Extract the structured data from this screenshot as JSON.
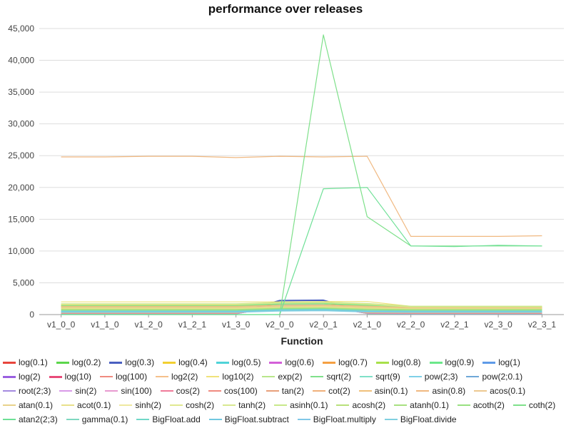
{
  "chart_data": {
    "type": "line",
    "title": "performance over releases",
    "xlabel": "Function",
    "ylabel": "",
    "ylim": [
      0,
      45000
    ],
    "yticks": [
      "0",
      "5,000",
      "10,000",
      "15,000",
      "20,000",
      "25,000",
      "30,000",
      "35,000",
      "40,000",
      "45,000"
    ],
    "grid": true,
    "legend_position": "bottom",
    "categories": [
      "v1_0_0",
      "v1_1_0",
      "v1_2_0",
      "v1_2_1",
      "v1_3_0",
      "v2_0_0",
      "v2_0_1",
      "v2_1_0",
      "v2_2_0",
      "v2_2_1",
      "v2_3_0",
      "v2_3_1"
    ],
    "series": [
      {
        "name": "log(0.1)",
        "color": "#e8453c",
        "values": [
          1250,
          1250,
          1250,
          1250,
          1250,
          1600,
          1650,
          1300,
          1000,
          1000,
          1000,
          1000
        ]
      },
      {
        "name": "log(0.2)",
        "color": "#5bd64b",
        "values": [
          1400,
          1400,
          1400,
          1400,
          1400,
          1800,
          1850,
          1500,
          1100,
          1100,
          1100,
          1100
        ]
      },
      {
        "name": "log(0.3)",
        "color": "#4a5fc1",
        "values": [
          300,
          300,
          300,
          300,
          300,
          2200,
          2250,
          300,
          300,
          300,
          300,
          300
        ]
      },
      {
        "name": "log(0.4)",
        "color": "#f2d031",
        "values": [
          1500,
          1500,
          1500,
          1500,
          1500,
          1900,
          1950,
          1600,
          1200,
          1200,
          1200,
          1200
        ]
      },
      {
        "name": "log(0.5)",
        "color": "#4fd3d8",
        "values": [
          200,
          200,
          200,
          200,
          200,
          1700,
          1750,
          250,
          200,
          200,
          200,
          200
        ]
      },
      {
        "name": "log(0.6)",
        "color": "#d35fd8",
        "values": [
          250,
          250,
          250,
          250,
          250,
          1500,
          1550,
          300,
          250,
          250,
          250,
          250
        ]
      },
      {
        "name": "log(0.7)",
        "color": "#f5a042",
        "values": [
          1000,
          1000,
          1000,
          1000,
          1000,
          1200,
          1250,
          1100,
          900,
          900,
          900,
          900
        ]
      },
      {
        "name": "log(0.8)",
        "color": "#a8e04a",
        "values": [
          1450,
          1450,
          1450,
          1450,
          1450,
          1850,
          1900,
          1550,
          1150,
          1150,
          1150,
          1150
        ]
      },
      {
        "name": "log(0.9)",
        "color": "#6be88a",
        "values": [
          1350,
          1350,
          1350,
          1350,
          1350,
          1750,
          1800,
          1450,
          1050,
          1050,
          1050,
          1050
        ]
      },
      {
        "name": "log(1)",
        "color": "#5e9be8",
        "values": [
          150,
          150,
          150,
          150,
          150,
          1400,
          1450,
          200,
          150,
          150,
          150,
          150
        ]
      },
      {
        "name": "log(2)",
        "color": "#9a5fe0",
        "values": [
          180,
          180,
          180,
          180,
          180,
          1300,
          1350,
          220,
          180,
          180,
          180,
          180
        ]
      },
      {
        "name": "log(10)",
        "color": "#e84b7a",
        "values": [
          220,
          220,
          220,
          220,
          220,
          1250,
          1300,
          260,
          220,
          220,
          220,
          220
        ]
      },
      {
        "name": "log(100)",
        "color": "#f08a80",
        "values": [
          1100,
          1100,
          1100,
          1100,
          1100,
          1400,
          1450,
          1150,
          950,
          950,
          950,
          950
        ]
      },
      {
        "name": "log2(2)",
        "color": "#f5c08a",
        "values": [
          900,
          900,
          900,
          900,
          900,
          1100,
          1150,
          950,
          800,
          800,
          800,
          800
        ]
      },
      {
        "name": "log10(2)",
        "color": "#f0e27a",
        "values": [
          2000,
          2000,
          2000,
          2000,
          2000,
          2000,
          2050,
          2050,
          1300,
          1300,
          1300,
          1300
        ]
      },
      {
        "name": "exp(2)",
        "color": "#b8e68a",
        "values": [
          1200,
          1200,
          1200,
          1200,
          1200,
          1550,
          1600,
          1250,
          1000,
          1000,
          1000,
          1000
        ]
      },
      {
        "name": "sqrt(2)",
        "color": "#7fe08a",
        "values": [
          100,
          100,
          100,
          100,
          100,
          1650,
          1700,
          150,
          100,
          100,
          100,
          100
        ]
      },
      {
        "name": "sqrt(9)",
        "color": "#7fe0c8",
        "values": [
          120,
          120,
          120,
          120,
          120,
          1550,
          1600,
          170,
          120,
          120,
          120,
          120
        ]
      },
      {
        "name": "pow(2;3)",
        "color": "#7fd0e8",
        "values": [
          130,
          130,
          130,
          130,
          130,
          1450,
          1500,
          180,
          130,
          130,
          130,
          130
        ]
      },
      {
        "name": "pow(2;0.1)",
        "color": "#6fa8d8",
        "values": [
          140,
          140,
          140,
          140,
          140,
          1350,
          1400,
          190,
          140,
          140,
          140,
          140
        ]
      },
      {
        "name": "root(2;3)",
        "color": "#a48ae0",
        "values": [
          160,
          160,
          160,
          160,
          160,
          1200,
          1250,
          210,
          160,
          160,
          160,
          160
        ]
      },
      {
        "name": "sin(2)",
        "color": "#d89ae8",
        "values": [
          170,
          170,
          170,
          170,
          170,
          1150,
          1200,
          220,
          170,
          170,
          170,
          170
        ]
      },
      {
        "name": "sin(100)",
        "color": "#e89ad0",
        "values": [
          190,
          190,
          190,
          190,
          190,
          1100,
          1150,
          240,
          190,
          190,
          190,
          190
        ]
      },
      {
        "name": "cos(2)",
        "color": "#f07a9a",
        "values": [
          210,
          210,
          210,
          210,
          210,
          1050,
          1100,
          260,
          210,
          210,
          210,
          210
        ]
      },
      {
        "name": "cos(100)",
        "color": "#f08a80",
        "values": [
          230,
          230,
          230,
          230,
          230,
          1000,
          1050,
          280,
          230,
          230,
          230,
          230
        ]
      },
      {
        "name": "tan(2)",
        "color": "#e8a07a",
        "values": [
          260,
          260,
          260,
          260,
          260,
          950,
          1000,
          300,
          260,
          260,
          260,
          260
        ]
      },
      {
        "name": "cot(2)",
        "color": "#f0b07a",
        "values": [
          280,
          280,
          280,
          280,
          280,
          900,
          950,
          320,
          280,
          280,
          280,
          280
        ]
      },
      {
        "name": "asin(0.1)",
        "color": "#f0c07a",
        "values": [
          1300,
          1300,
          1300,
          1300,
          1300,
          1500,
          1550,
          1350,
          1100,
          1100,
          1100,
          1100
        ]
      },
      {
        "name": "asin(0.8)",
        "color": "#f0b880",
        "values": [
          24800,
          24800,
          24900,
          24900,
          24700,
          24900,
          24800,
          24900,
          12300,
          12300,
          12300,
          12400
        ]
      },
      {
        "name": "acos(0.1)",
        "color": "#ecc890",
        "values": [
          1150,
          1150,
          1150,
          1150,
          1150,
          1350,
          1400,
          1200,
          1000,
          1000,
          1000,
          1000
        ]
      },
      {
        "name": "atan(0.1)",
        "color": "#e8d28a",
        "values": [
          1050,
          1050,
          1050,
          1050,
          1050,
          1250,
          1300,
          1100,
          950,
          950,
          950,
          950
        ]
      },
      {
        "name": "acot(0.1)",
        "color": "#e8e08a",
        "values": [
          950,
          950,
          950,
          950,
          950,
          1150,
          1200,
          1000,
          900,
          900,
          900,
          900
        ]
      },
      {
        "name": "sinh(2)",
        "color": "#eee8a0",
        "values": [
          1600,
          1600,
          1600,
          1600,
          1600,
          1850,
          1900,
          1650,
          1250,
          1250,
          1250,
          1250
        ]
      },
      {
        "name": "cosh(2)",
        "color": "#e0e890",
        "values": [
          1550,
          1550,
          1550,
          1550,
          1550,
          1800,
          1850,
          1600,
          1200,
          1200,
          1200,
          1200
        ]
      },
      {
        "name": "tanh(2)",
        "color": "#d8e890",
        "values": [
          850,
          850,
          850,
          850,
          850,
          1050,
          1100,
          900,
          850,
          850,
          850,
          850
        ]
      },
      {
        "name": "asinh(0.1)",
        "color": "#c8e88a",
        "values": [
          1700,
          1700,
          1700,
          1700,
          1700,
          1900,
          1950,
          1750,
          1300,
          1300,
          1300,
          1300
        ]
      },
      {
        "name": "acosh(2)",
        "color": "#b8e07a",
        "values": [
          800,
          800,
          800,
          800,
          800,
          1000,
          1050,
          850,
          800,
          800,
          800,
          800
        ]
      },
      {
        "name": "atanh(0.1)",
        "color": "#a8e080",
        "values": [
          750,
          750,
          750,
          750,
          750,
          950,
          1000,
          800,
          750,
          750,
          750,
          750
        ]
      },
      {
        "name": "acoth(2)",
        "color": "#98e080",
        "values": [
          700,
          700,
          700,
          700,
          700,
          900,
          950,
          750,
          700,
          700,
          700,
          700
        ]
      },
      {
        "name": "coth(2)",
        "color": "#7ee08a",
        "values": [
          0,
          0,
          0,
          0,
          0,
          0,
          44000,
          15400,
          10800,
          10800,
          10800,
          10800
        ]
      },
      {
        "name": "atan2(2;3)",
        "color": "#6ee096",
        "values": [
          0,
          0,
          0,
          0,
          0,
          0,
          19800,
          20000,
          10800,
          10700,
          10900,
          10800
        ]
      },
      {
        "name": "gamma(0.1)",
        "color": "#7ed8c0",
        "values": [
          600,
          600,
          600,
          600,
          600,
          800,
          850,
          650,
          600,
          600,
          600,
          600
        ]
      },
      {
        "name": "BigFloat.add",
        "color": "#70d8c8",
        "values": [
          500,
          500,
          500,
          500,
          500,
          700,
          750,
          550,
          500,
          500,
          500,
          500
        ]
      },
      {
        "name": "BigFloat.subtract",
        "color": "#70c8e0",
        "values": [
          450,
          450,
          450,
          450,
          450,
          650,
          700,
          500,
          450,
          450,
          450,
          450
        ]
      },
      {
        "name": "BigFloat.multiply",
        "color": "#80c8e8",
        "values": [
          400,
          400,
          400,
          400,
          400,
          600,
          650,
          450,
          400,
          400,
          400,
          400
        ]
      },
      {
        "name": "BigFloat.divide",
        "color": "#80d0e0",
        "values": [
          350,
          350,
          350,
          350,
          350,
          550,
          600,
          400,
          350,
          350,
          350,
          350
        ]
      }
    ]
  }
}
